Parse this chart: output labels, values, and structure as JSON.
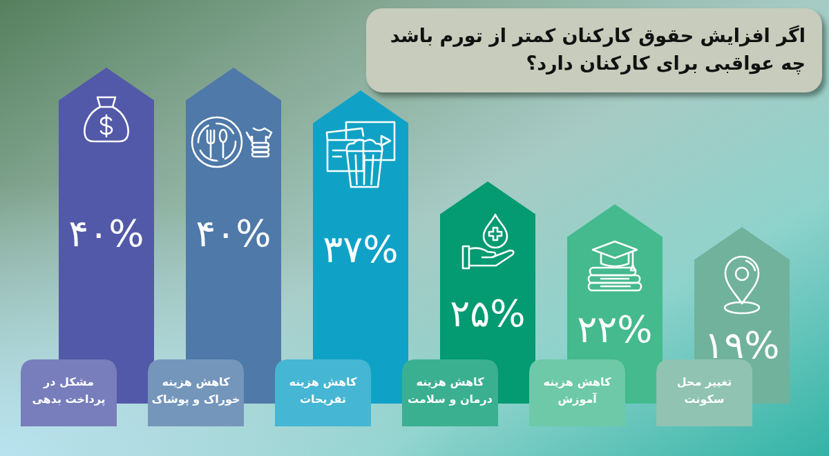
{
  "chart_data": {
    "type": "bar",
    "title": "اگر افزایش حقوق کارکنان کمتر از تورم باشد چه عواقبی برای کارکنان دارد؟",
    "categories": [
      "مشکل در پرداخت بدهی",
      "کاهش هزینه خوراک و پوشاک",
      "کاهش هزینه تفریحات",
      "کاهش هزینه درمان و سلامت",
      "کاهش هزینه آموزش",
      "تغییر محل سکونت"
    ],
    "values": [
      40,
      40,
      37,
      25,
      22,
      19
    ],
    "colors": [
      "#5259a8",
      "#4e79a8",
      "#10a2c6",
      "#049a72",
      "#44ba8e",
      "#71b29c"
    ],
    "value_labels": [
      "۴۰%",
      "۴۰%",
      "۳۷%",
      "۲۵%",
      "۲۲%",
      "۱۹%"
    ]
  }
}
